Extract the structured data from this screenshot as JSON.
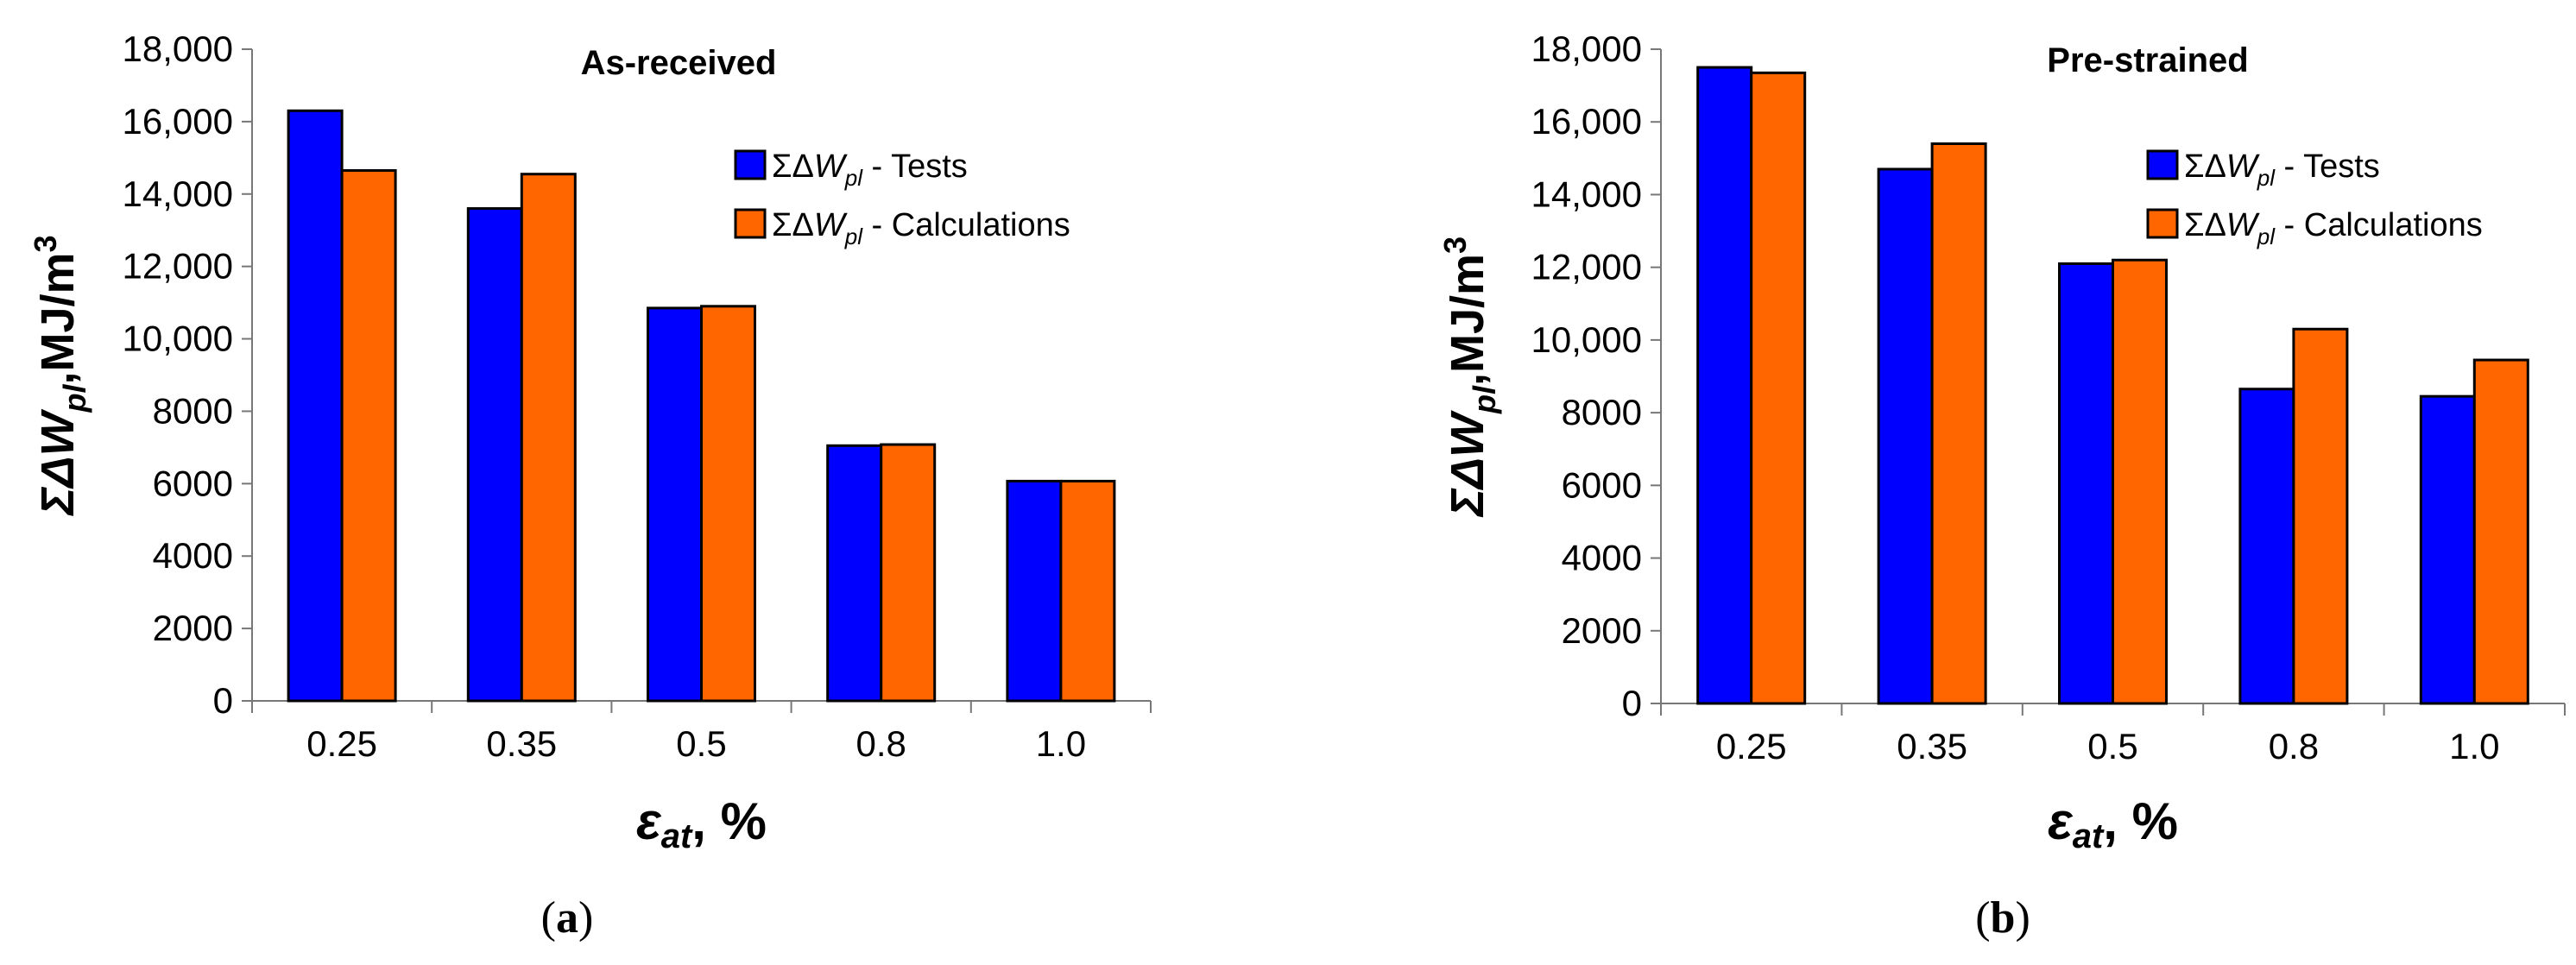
{
  "chart_data": [
    {
      "type": "bar",
      "panel_caption": "(a)",
      "title": "As-received",
      "categories": [
        "0.25",
        "0.35",
        "0.5",
        "0.8",
        "1.0"
      ],
      "series": [
        {
          "name": "ΣΔWpl - Tests",
          "color": "#0000ff",
          "values": [
            16300,
            13600,
            10850,
            7050,
            6070
          ]
        },
        {
          "name": "ΣΔWpl - Calculations",
          "color": "#ff6600",
          "values": [
            14650,
            14550,
            10900,
            7080,
            6070
          ]
        }
      ],
      "ylim": [
        0,
        18000
      ],
      "yticks": [
        "0",
        "2000",
        "4000",
        "6000",
        "8000",
        "10,000",
        "12,000",
        "14,000",
        "16,000",
        "18,000"
      ],
      "ylabel": {
        "sym": "ΣΔW",
        "sub": "pl",
        "unit": ",MJ/m",
        "sup": "3"
      },
      "xlabel": {
        "sym": "ε",
        "sub": "at",
        "unit": ", %"
      },
      "legend_entries": [
        {
          "prefix": "ΣΔ",
          "var": "W",
          "sub": "pl",
          "suffix": " - Tests"
        },
        {
          "prefix": "ΣΔ",
          "var": "W",
          "sub": "pl",
          "suffix": " - Calculations"
        }
      ]
    },
    {
      "type": "bar",
      "panel_caption": "(b)",
      "title": "Pre-strained",
      "categories": [
        "0.25",
        "0.35",
        "0.5",
        "0.8",
        "1.0"
      ],
      "series": [
        {
          "name": "ΣΔWpl - Tests",
          "color": "#0000ff",
          "values": [
            17500,
            14700,
            12100,
            8650,
            8450
          ]
        },
        {
          "name": "ΣΔWpl - Calculations",
          "color": "#ff6600",
          "values": [
            17350,
            15400,
            12200,
            10300,
            9450
          ]
        }
      ],
      "ylim": [
        0,
        18000
      ],
      "yticks": [
        "0",
        "2000",
        "4000",
        "6000",
        "8000",
        "10,000",
        "12,000",
        "14,000",
        "16,000",
        "18,000"
      ],
      "ylabel": {
        "sym": "ΣΔW",
        "sub": "pl",
        "unit": ",MJ/m",
        "sup": "3"
      },
      "xlabel": {
        "sym": "ε",
        "sub": "at",
        "unit": ", %"
      },
      "legend_entries": [
        {
          "prefix": "ΣΔ",
          "var": "W",
          "sub": "pl",
          "suffix": " - Tests"
        },
        {
          "prefix": "ΣΔ",
          "var": "W",
          "sub": "pl",
          "suffix": " - Calculations"
        }
      ]
    }
  ]
}
